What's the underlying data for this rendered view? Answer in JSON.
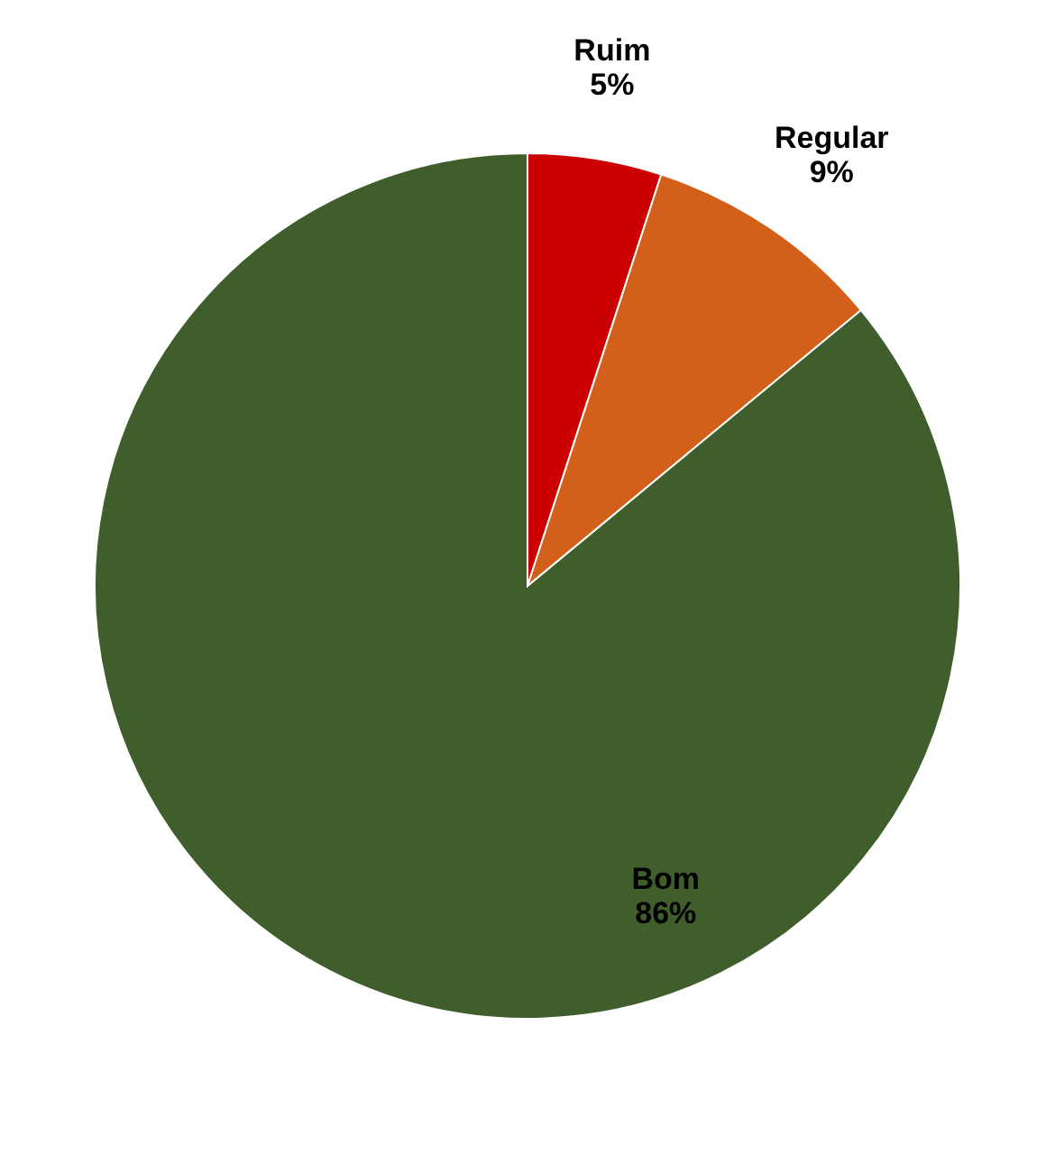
{
  "chart_data": {
    "type": "pie",
    "categories": [
      "Ruim",
      "Regular",
      "Bom"
    ],
    "values": [
      5,
      9,
      86
    ],
    "value_labels": [
      "5%",
      "9%",
      "86%"
    ],
    "colors": [
      "#cc0000",
      "#d2601a",
      "#3f5e2b"
    ],
    "legend": false
  }
}
